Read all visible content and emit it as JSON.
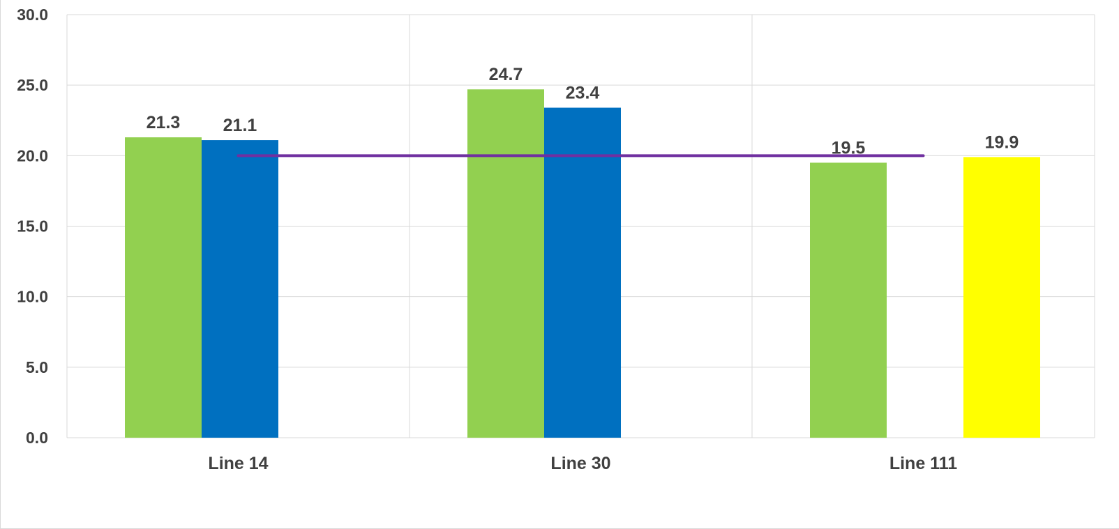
{
  "chart_data": {
    "type": "bar",
    "categories": [
      "Line 14",
      "Line 30",
      "Line 111"
    ],
    "y_ticks": [
      "0.0",
      "5.0",
      "10.0",
      "15.0",
      "20.0",
      "25.0",
      "30.0"
    ],
    "ylim": [
      0,
      30
    ],
    "grid": true,
    "bars": [
      {
        "category": "Line 14",
        "slot": 0,
        "value": 21.3,
        "label": "21.3",
        "color": "#92d050"
      },
      {
        "category": "Line 14",
        "slot": 1,
        "value": 21.1,
        "label": "21.1",
        "color": "#0070c0"
      },
      {
        "category": "Line 30",
        "slot": 0,
        "value": 24.7,
        "label": "24.7",
        "color": "#92d050"
      },
      {
        "category": "Line 30",
        "slot": 1,
        "value": 23.4,
        "label": "23.4",
        "color": "#0070c0"
      },
      {
        "category": "Line 111",
        "slot": 0,
        "value": 19.5,
        "label": "19.5",
        "color": "#92d050"
      },
      {
        "category": "Line 111",
        "slot": 2,
        "value": 19.9,
        "label": "19.9",
        "color": "#ffff00"
      }
    ],
    "target_line": {
      "value": 20.0,
      "from_category": "Line 14",
      "to_category": "Line 111",
      "color": "#7030a0"
    },
    "colors": {
      "gridline": "#d9d9d9",
      "text": "#404040"
    }
  }
}
